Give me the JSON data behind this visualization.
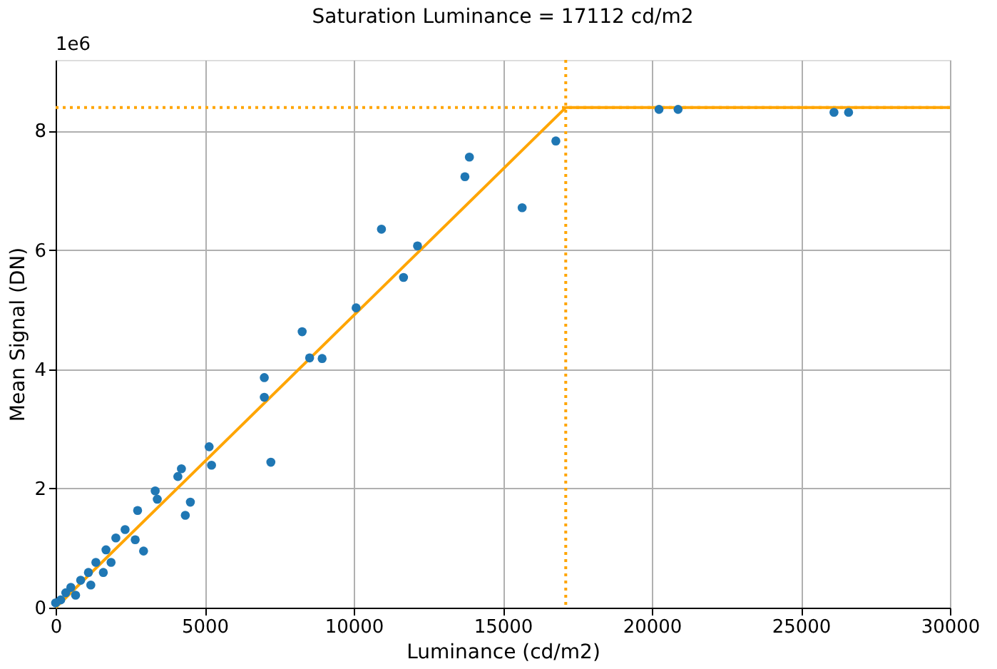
{
  "chart_data": {
    "type": "scatter",
    "title": "Saturation Luminance = 17112 cd/m2",
    "xlabel": "Luminance (cd/m2)",
    "ylabel": "Mean Signal (DN)",
    "annotations": [
      "1e6"
    ],
    "series": [
      {
        "color": "#1f77b4",
        "marker": "circle",
        "x": [
          16780,
          13880,
          13730,
          15650,
          10930,
          12140,
          11670,
          10080,
          8270,
          8520,
          8940,
          7000,
          7000,
          7220,
          5150,
          5230,
          4220,
          4100,
          3340,
          3410,
          4520,
          4350,
          2750,
          2330,
          2020,
          2670,
          2950,
          1690,
          1860,
          1350,
          1100,
          1600,
          840,
          1180,
          510,
          340,
          670,
          170,
          0,
          20240,
          20880,
          26110,
          26600
        ],
        "values": [
          7.83,
          7.56,
          7.23,
          6.71,
          6.35,
          6.07,
          5.54,
          5.03,
          4.63,
          4.19,
          4.18,
          3.86,
          3.53,
          2.44,
          2.7,
          2.39,
          2.33,
          2.2,
          1.96,
          1.82,
          1.77,
          1.55,
          1.63,
          1.31,
          1.17,
          1.14,
          0.95,
          0.97,
          0.76,
          0.76,
          0.59,
          0.59,
          0.46,
          0.38,
          0.34,
          0.25,
          0.21,
          0.13,
          0.08,
          8.36,
          8.36,
          8.31,
          8.31
        ]
      },
      {
        "type": "line",
        "color": "#ffa500",
        "line_style": "solid",
        "x": [
          0,
          17112,
          30000
        ],
        "values": [
          0,
          8.39,
          8.39
        ]
      }
    ],
    "ref_lines": [
      {
        "axis": "x",
        "value": 17112,
        "color": "#ffa500",
        "line_style": "dotted"
      },
      {
        "axis": "y",
        "value": 8.39,
        "color": "#ffa500",
        "line_style": "dotted"
      }
    ],
    "xlim": [
      0,
      30000
    ],
    "xticks": [
      0,
      5000,
      10000,
      15000,
      20000,
      25000,
      30000
    ],
    "ylim": [
      0,
      9.19
    ],
    "yticks": [
      0,
      2,
      4,
      6,
      8
    ],
    "grid": true
  }
}
